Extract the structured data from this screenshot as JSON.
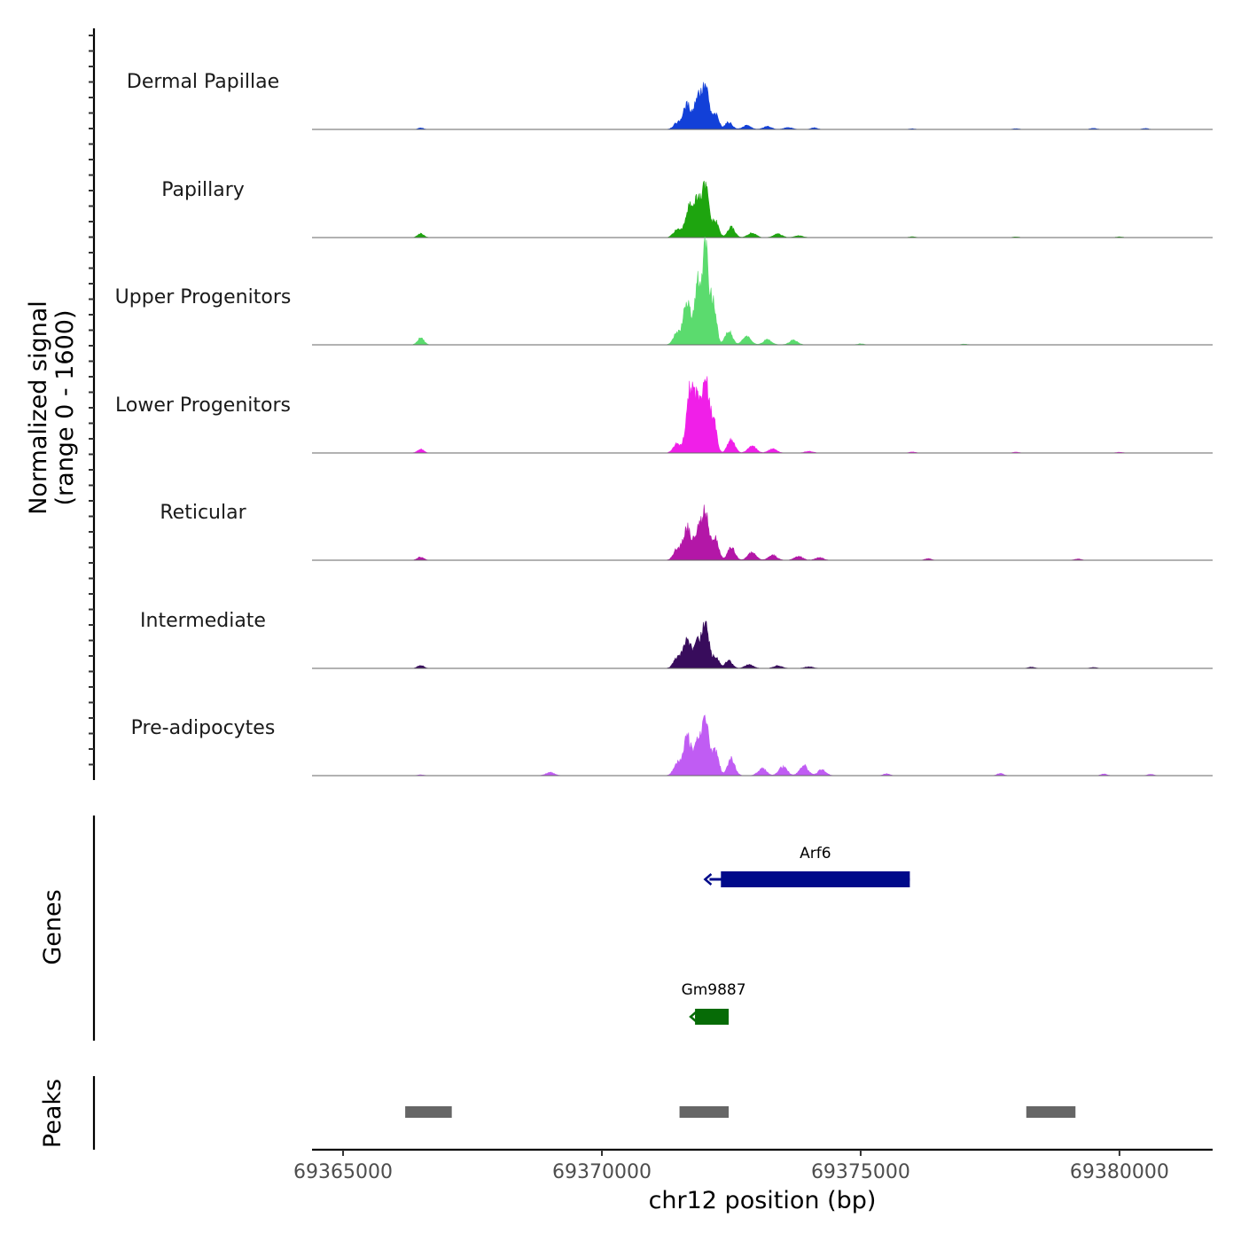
{
  "chart_data": {
    "type": "area",
    "title": "",
    "xlabel": "chr12 position (bp)",
    "ylabel": "Normalized signal",
    "ylabel_range": "(range 0 - 1600)",
    "ylim": [
      0,
      1600
    ],
    "xlim": [
      69364400,
      69381800
    ],
    "x_ticks": [
      {
        "value": 69365000,
        "label": "69365000"
      },
      {
        "value": 69370000,
        "label": "69370000"
      },
      {
        "value": 69375000,
        "label": "69375000"
      },
      {
        "value": 69380000,
        "label": "69380000"
      }
    ],
    "series": [
      {
        "name": "Dermal Papillae",
        "color": "#1240d8",
        "peaks": [
          [
            69366500,
            25,
            50
          ],
          [
            69371450,
            90,
            70
          ],
          [
            69371650,
            380,
            80
          ],
          [
            69371850,
            480,
            60
          ],
          [
            69372000,
            650,
            70
          ],
          [
            69372200,
            220,
            60
          ],
          [
            69372450,
            110,
            70
          ],
          [
            69372800,
            60,
            80
          ],
          [
            69373200,
            45,
            80
          ],
          [
            69373600,
            30,
            80
          ],
          [
            69374100,
            25,
            60
          ],
          [
            69376000,
            10,
            60
          ],
          [
            69378000,
            12,
            60
          ],
          [
            69379500,
            18,
            60
          ],
          [
            69380500,
            15,
            60
          ]
        ]
      },
      {
        "name": "Papillary",
        "color": "#1ea50f",
        "peaks": [
          [
            69366500,
            60,
            60
          ],
          [
            69371450,
            120,
            70
          ],
          [
            69371700,
            520,
            80
          ],
          [
            69371850,
            430,
            60
          ],
          [
            69372000,
            780,
            70
          ],
          [
            69372200,
            240,
            60
          ],
          [
            69372500,
            160,
            70
          ],
          [
            69372900,
            70,
            80
          ],
          [
            69373400,
            55,
            80
          ],
          [
            69373800,
            30,
            80
          ],
          [
            69376000,
            12,
            60
          ],
          [
            69378000,
            10,
            60
          ],
          [
            69380000,
            10,
            60
          ]
        ]
      },
      {
        "name": "Upper Progenitors",
        "color": "#5bdb6e",
        "peaks": [
          [
            69366500,
            110,
            60
          ],
          [
            69371450,
            180,
            70
          ],
          [
            69371650,
            700,
            70
          ],
          [
            69371850,
            900,
            60
          ],
          [
            69372000,
            1400,
            60
          ],
          [
            69372150,
            650,
            60
          ],
          [
            69372450,
            210,
            70
          ],
          [
            69372800,
            130,
            80
          ],
          [
            69373200,
            80,
            80
          ],
          [
            69373700,
            70,
            80
          ],
          [
            69375000,
            15,
            60
          ],
          [
            69377000,
            10,
            60
          ]
        ]
      },
      {
        "name": "Lower Progenitors",
        "color": "#f01fe8",
        "peaks": [
          [
            69366500,
            60,
            60
          ],
          [
            69371450,
            140,
            70
          ],
          [
            69371700,
            1000,
            70
          ],
          [
            69371850,
            800,
            60
          ],
          [
            69372000,
            1150,
            60
          ],
          [
            69372150,
            550,
            60
          ],
          [
            69372500,
            210,
            70
          ],
          [
            69372900,
            110,
            80
          ],
          [
            69373300,
            60,
            80
          ],
          [
            69374000,
            25,
            80
          ],
          [
            69376000,
            15,
            60
          ],
          [
            69378000,
            12,
            60
          ],
          [
            69380000,
            12,
            60
          ]
        ]
      },
      {
        "name": "Reticular",
        "color": "#b317a7",
        "peaks": [
          [
            69366500,
            50,
            60
          ],
          [
            69371450,
            160,
            70
          ],
          [
            69371650,
            500,
            80
          ],
          [
            69371850,
            420,
            60
          ],
          [
            69372000,
            760,
            70
          ],
          [
            69372200,
            320,
            60
          ],
          [
            69372500,
            200,
            70
          ],
          [
            69372900,
            120,
            80
          ],
          [
            69373300,
            80,
            80
          ],
          [
            69373800,
            60,
            80
          ],
          [
            69374200,
            40,
            80
          ],
          [
            69376300,
            25,
            60
          ],
          [
            69379200,
            20,
            60
          ]
        ]
      },
      {
        "name": "Intermediate",
        "color": "#380c5c",
        "peaks": [
          [
            69366500,
            45,
            60
          ],
          [
            69371450,
            150,
            70
          ],
          [
            69371650,
            450,
            80
          ],
          [
            69371850,
            350,
            60
          ],
          [
            69372000,
            660,
            70
          ],
          [
            69372200,
            180,
            60
          ],
          [
            69372450,
            120,
            70
          ],
          [
            69372850,
            60,
            80
          ],
          [
            69373400,
            40,
            80
          ],
          [
            69374000,
            25,
            80
          ],
          [
            69378300,
            20,
            60
          ],
          [
            69379500,
            15,
            60
          ]
        ]
      },
      {
        "name": "Pre-adipocytes",
        "color": "#c05cf3",
        "peaks": [
          [
            69366500,
            12,
            60
          ],
          [
            69369000,
            50,
            80
          ],
          [
            69371450,
            170,
            70
          ],
          [
            69371650,
            600,
            80
          ],
          [
            69371850,
            500,
            60
          ],
          [
            69372000,
            880,
            70
          ],
          [
            69372200,
            380,
            60
          ],
          [
            69372500,
            260,
            70
          ],
          [
            69373100,
            110,
            80
          ],
          [
            69373500,
            140,
            80
          ],
          [
            69373900,
            160,
            80
          ],
          [
            69374250,
            90,
            80
          ],
          [
            69375500,
            30,
            60
          ],
          [
            69377700,
            35,
            60
          ],
          [
            69379700,
            25,
            60
          ],
          [
            69380600,
            20,
            60
          ]
        ]
      }
    ],
    "genes": [
      {
        "name": "Arf6",
        "start": 69372300,
        "end": 69375950,
        "tss": 69372080,
        "color": "#000a8a",
        "label": "Arf6"
      },
      {
        "name": "Gm9887",
        "start": 69371800,
        "end": 69372450,
        "tss": 69371800,
        "color": "#066b06",
        "label": "Gm9887"
      }
    ],
    "genes_label": "Genes",
    "peaks_label": "Peaks",
    "peak_regions": [
      {
        "start": 69366200,
        "end": 69367100
      },
      {
        "start": 69371500,
        "end": 69372450
      },
      {
        "start": 69378200,
        "end": 69379150
      }
    ],
    "peak_color": "#666666"
  }
}
